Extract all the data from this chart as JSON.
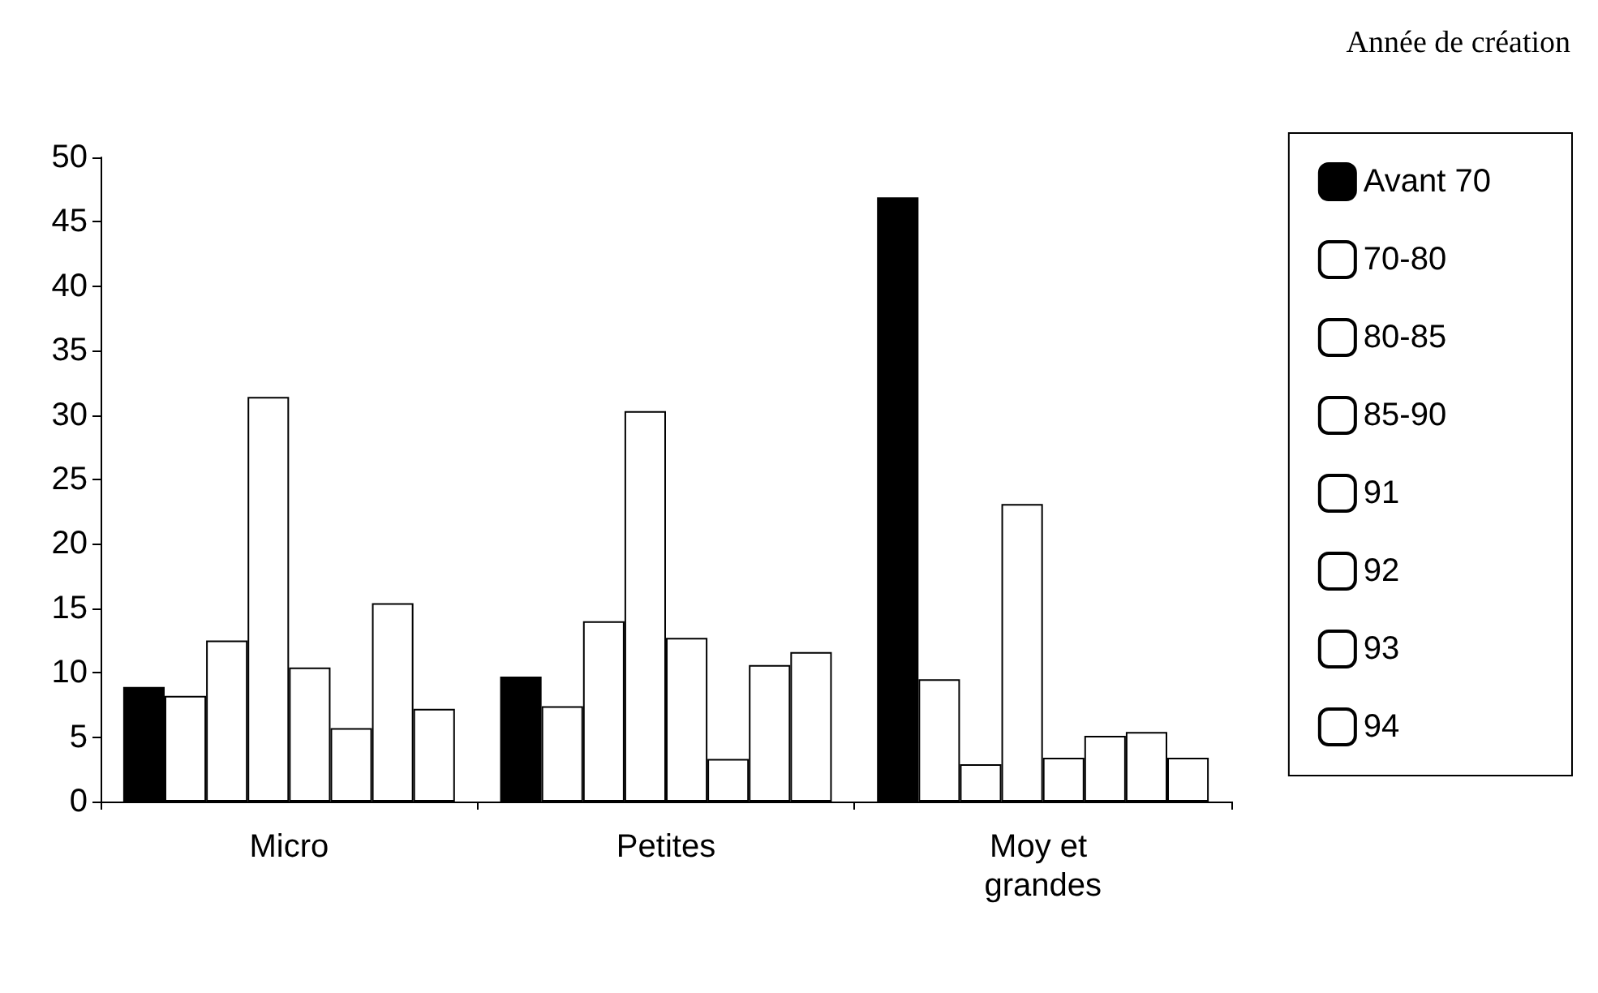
{
  "chart_data": {
    "type": "bar",
    "legend_title": "Année de création",
    "categories": [
      "Micro",
      "Petites",
      "Moy et grandes"
    ],
    "series": [
      {
        "name": "Avant 70",
        "color": "#000000",
        "values": [
          8.9,
          9.7,
          46.9
        ]
      },
      {
        "name": "70-80",
        "color": "#ffffff",
        "values": [
          8.2,
          7.4,
          9.5
        ]
      },
      {
        "name": "80-85",
        "color": "#ffffff",
        "values": [
          12.5,
          14.0,
          2.9
        ]
      },
      {
        "name": "85-90",
        "color": "#ffffff",
        "values": [
          31.4,
          30.3,
          23.1
        ]
      },
      {
        "name": "91",
        "color": "#ffffff",
        "values": [
          10.4,
          12.7,
          3.4
        ]
      },
      {
        "name": "92",
        "color": "#ffffff",
        "values": [
          5.7,
          3.3,
          5.1
        ]
      },
      {
        "name": "93",
        "color": "#ffffff",
        "values": [
          15.4,
          10.6,
          5.4
        ]
      },
      {
        "name": "94",
        "color": "#ffffff",
        "values": [
          7.2,
          11.6,
          3.4
        ]
      }
    ],
    "ylim": [
      0,
      50
    ],
    "yticks": [
      0,
      5,
      10,
      15,
      20,
      25,
      30,
      35,
      40,
      45,
      50
    ],
    "grid": false,
    "legend": "right"
  }
}
